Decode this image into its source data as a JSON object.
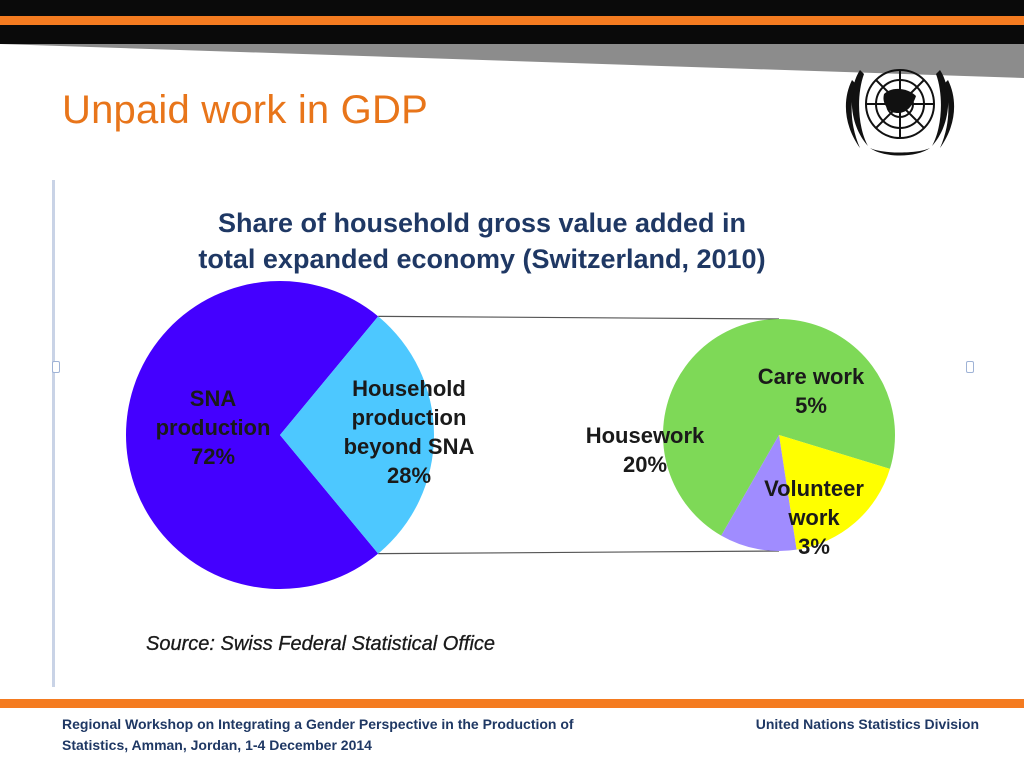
{
  "slide": {
    "title": "Unpaid work in GDP",
    "emblem_icon": "un-emblem-icon",
    "accent_color": "#f47b20",
    "title_color": "#e8751a"
  },
  "chart_data": {
    "type": "pie",
    "title": "Share of household gross value added in total expanded economy (Switzerland, 2010)",
    "title_lines": [
      "Share of household gross value added in",
      "total expanded economy (Switzerland, 2010)"
    ],
    "source": "Source: Swiss Federal Statistical Office",
    "main_pie": {
      "slices": [
        {
          "label_lines": [
            "SNA",
            "production",
            "72%"
          ],
          "value": 72,
          "color": "#4400ff"
        },
        {
          "label_lines": [
            "Household",
            "production",
            "beyond SNA",
            "28%"
          ],
          "value": 28,
          "color": "#4dc8ff"
        }
      ]
    },
    "breakdown_pie": {
      "slices": [
        {
          "label_lines": [
            "Housework",
            "20%"
          ],
          "value": 20,
          "color": "#7ed957"
        },
        {
          "label_lines": [
            "Care work",
            "5%"
          ],
          "value": 5,
          "color": "#ffff00"
        },
        {
          "label_lines": [
            "Volunteer",
            "work",
            "3%"
          ],
          "value": 3,
          "color": "#a08cff"
        }
      ]
    }
  },
  "footer": {
    "left_line1": "Regional Workshop on Integrating a Gender Perspective in the Production of",
    "left_line2": "Statistics, Amman, Jordan, 1-4 December 2014",
    "right": "United Nations Statistics Division"
  }
}
